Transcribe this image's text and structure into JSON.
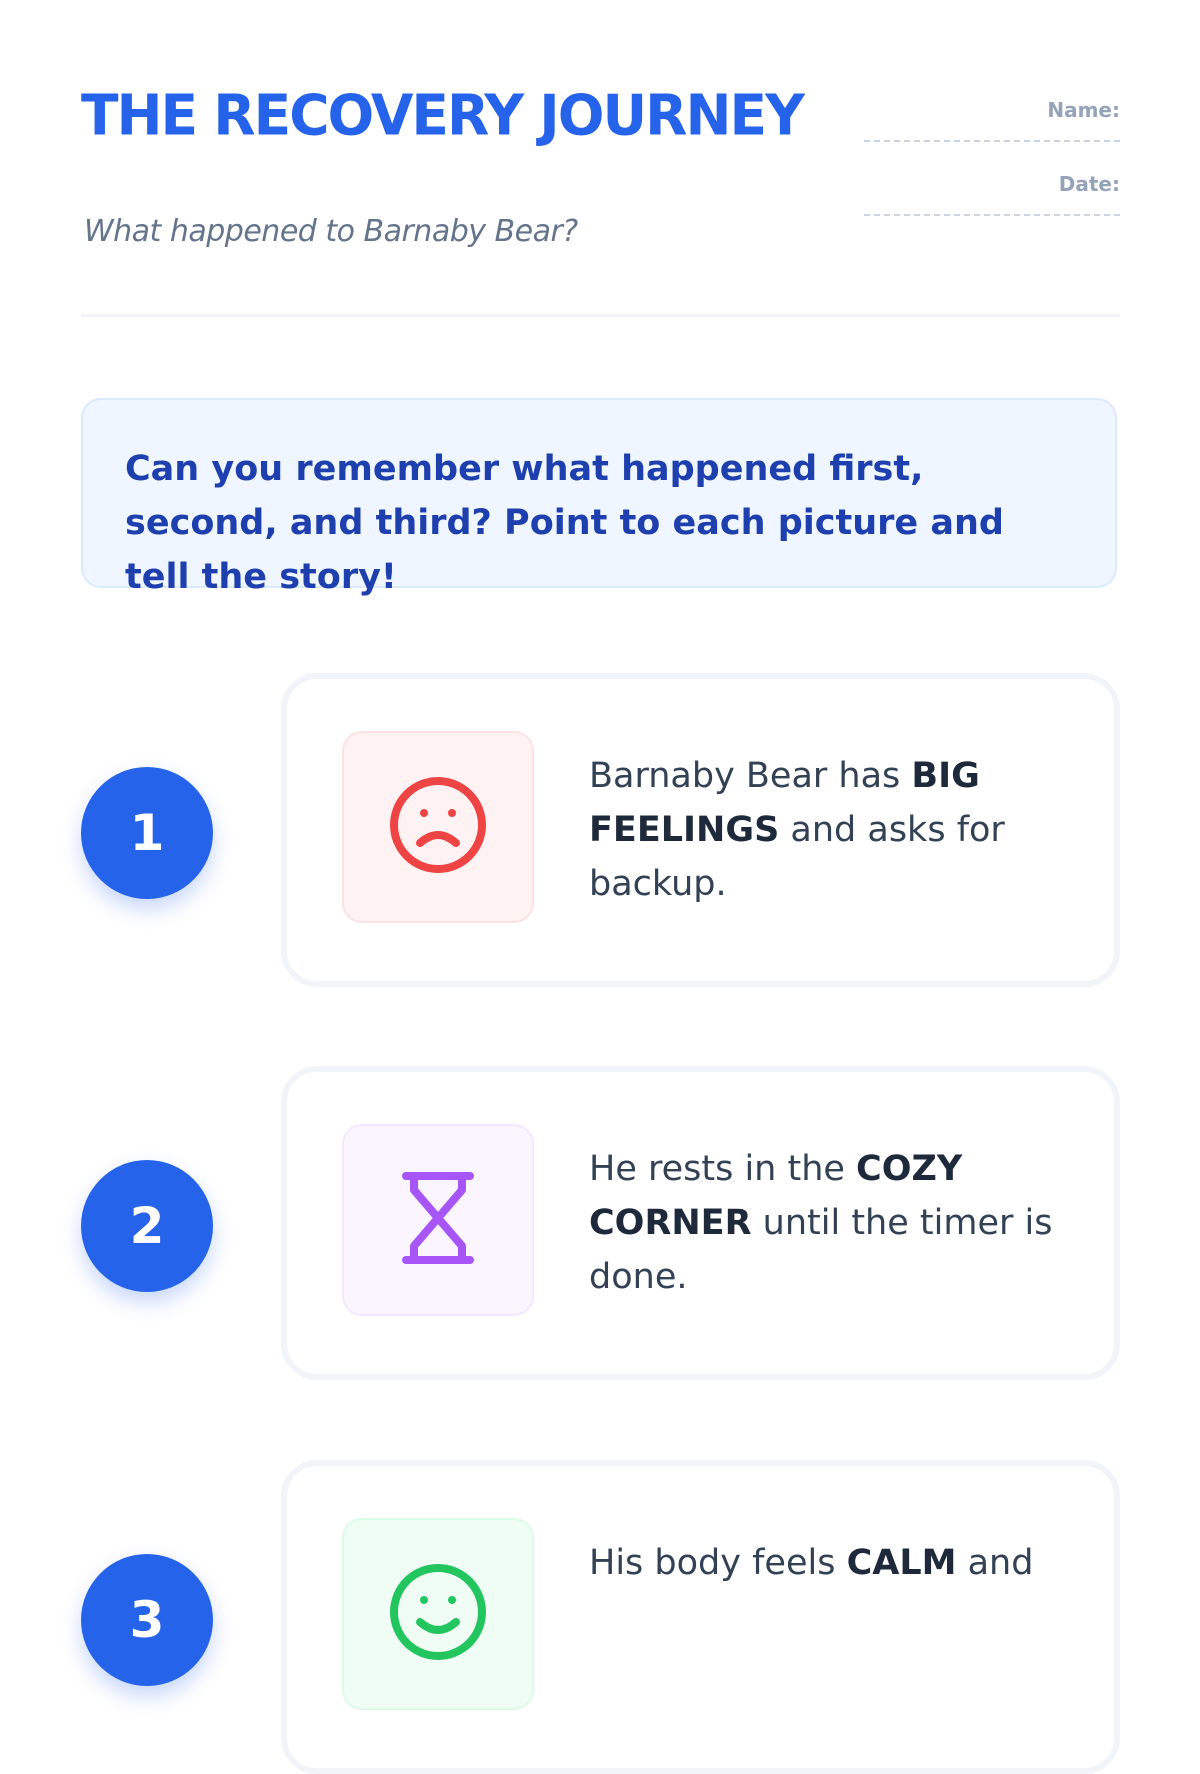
{
  "header": {
    "title": "THE RECOVERY JOURNEY",
    "subtitle": "What happened to Barnaby Bear?",
    "name_label": "Name:",
    "date_label": "Date:"
  },
  "instructions": "Can you remember what happened first, second, and third? Point to each picture and tell the story!",
  "steps": [
    {
      "number": "1",
      "icon": "sad-face-icon",
      "icon_color": "#ef4444",
      "bg": "#fef2f2",
      "border": "#fee2e2",
      "pre": "Barnaby Bear has ",
      "bold": "BIG FEELINGS",
      "post": " and asks for backup."
    },
    {
      "number": "2",
      "icon": "hourglass-icon",
      "icon_color": "#a855f7",
      "bg": "#faf5ff",
      "border": "#f3e8ff",
      "pre": "He rests in the ",
      "bold": "COZY CORNER",
      "post": " until the timer is done."
    },
    {
      "number": "3",
      "icon": "happy-face-icon",
      "icon_color": "#22c55e",
      "bg": "#f0fdf4",
      "border": "#dcfce7",
      "pre": "His body feels ",
      "bold": "CALM",
      "post": " and"
    }
  ],
  "colors": {
    "accent": "#2563eb"
  }
}
